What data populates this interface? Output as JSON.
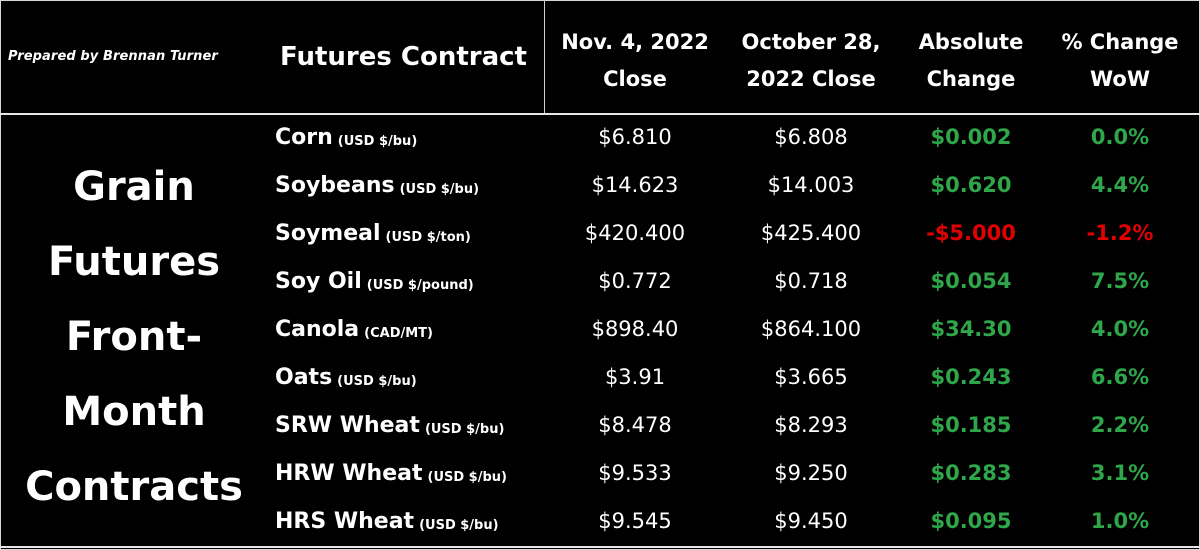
{
  "prepared_by": "Prepared by Brennan Turner",
  "section_title": [
    "Grain",
    "Futures",
    "Front-",
    "Month",
    "Contracts"
  ],
  "headers": {
    "contract": "Futures Contract",
    "current_close": [
      "Nov. 4, 2022",
      "Close"
    ],
    "prior_close": [
      "October 28,",
      "2022 Close"
    ],
    "absolute_change": [
      "Absolute",
      "Change"
    ],
    "pct_change": [
      "% Change",
      "WoW"
    ]
  },
  "colors": {
    "background": "#000000",
    "text": "#ffffff",
    "positive": "#2fa64a",
    "negative": "#e00000"
  },
  "rows": [
    {
      "name": "Corn",
      "unit": "(USD $/bu)",
      "current": "$6.810",
      "prior": "$6.808",
      "abs_change": "$0.002",
      "pct_change": "0.0%",
      "direction": "positive"
    },
    {
      "name": "Soybeans",
      "unit": "(USD $/bu)",
      "current": "$14.623",
      "prior": "$14.003",
      "abs_change": "$0.620",
      "pct_change": "4.4%",
      "direction": "positive"
    },
    {
      "name": "Soymeal",
      "unit": "(USD $/ton)",
      "current": "$420.400",
      "prior": "$425.400",
      "abs_change": "-$5.000",
      "pct_change": "-1.2%",
      "direction": "negative"
    },
    {
      "name": "Soy Oil",
      "unit": "(USD $/pound)",
      "current": "$0.772",
      "prior": "$0.718",
      "abs_change": "$0.054",
      "pct_change": "7.5%",
      "direction": "positive"
    },
    {
      "name": "Canola",
      "unit": "(CAD/MT)",
      "current": "$898.40",
      "prior": "$864.100",
      "abs_change": "$34.30",
      "pct_change": "4.0%",
      "direction": "positive"
    },
    {
      "name": "Oats",
      "unit": "(USD $/bu)",
      "current": "$3.91",
      "prior": "$3.665",
      "abs_change": "$0.243",
      "pct_change": "6.6%",
      "direction": "positive"
    },
    {
      "name": "SRW Wheat",
      "unit": "(USD $/bu)",
      "current": "$8.478",
      "prior": "$8.293",
      "abs_change": "$0.185",
      "pct_change": "2.2%",
      "direction": "positive"
    },
    {
      "name": "HRW Wheat",
      "unit": "(USD $/bu)",
      "current": "$9.533",
      "prior": "$9.250",
      "abs_change": "$0.283",
      "pct_change": "3.1%",
      "direction": "positive"
    },
    {
      "name": "HRS Wheat",
      "unit": "(USD $/bu)",
      "current": "$9.545",
      "prior": "$9.450",
      "abs_change": "$0.095",
      "pct_change": "1.0%",
      "direction": "positive"
    }
  ]
}
